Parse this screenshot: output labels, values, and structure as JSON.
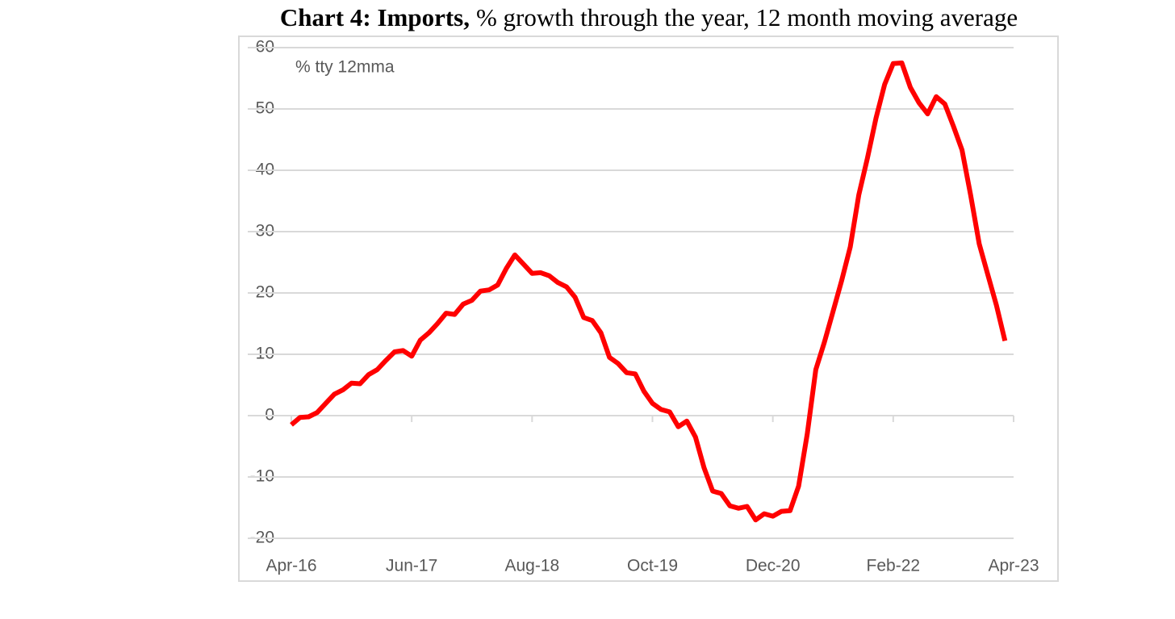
{
  "chart_data": {
    "type": "line",
    "title": [
      "Chart 4: Imports,",
      "% growth through the year, 12 month moving average"
    ],
    "annotation": "% tty 12mma",
    "categories": [
      "Apr-16",
      null,
      null,
      null,
      null,
      null,
      null,
      null,
      null,
      null,
      null,
      null,
      null,
      null,
      "Jun-17",
      null,
      null,
      null,
      null,
      null,
      null,
      null,
      null,
      null,
      null,
      null,
      null,
      null,
      "Aug-18",
      null,
      null,
      null,
      null,
      null,
      null,
      null,
      null,
      null,
      null,
      null,
      null,
      null,
      "Oct-19",
      null,
      null,
      null,
      null,
      null,
      null,
      null,
      null,
      null,
      null,
      null,
      null,
      null,
      "Dec-20",
      null,
      null,
      null,
      null,
      null,
      null,
      null,
      null,
      null,
      null,
      null,
      null,
      null,
      "Feb-22",
      null,
      null,
      null,
      null,
      null,
      null,
      null,
      null,
      null,
      null,
      null,
      null,
      null,
      "Apr-23"
    ],
    "series": [
      {
        "name": "Imports",
        "color": "#ff0000",
        "values": [
          -1.5,
          -0.3,
          -0.2,
          0.5,
          2,
          3.5,
          4.2,
          5.3,
          5.2,
          6.7,
          7.5,
          9,
          10.4,
          10.6,
          9.7,
          12.3,
          13.5,
          15,
          16.7,
          16.5,
          18.2,
          18.8,
          20.3,
          20.5,
          21.3,
          24,
          26.2,
          24.7,
          23.2,
          23.3,
          22.8,
          21.7,
          21,
          19.3,
          16,
          15.5,
          13.5,
          9.5,
          8.5,
          7,
          6.8,
          4,
          2,
          1,
          0.6,
          -1.8,
          -0.9,
          -3.5,
          -8.5,
          -12.3,
          -12.7,
          -14.7,
          -15.1,
          -14.8,
          -17,
          -16,
          -16.4,
          -15.6,
          -15.5,
          -11.5,
          -3,
          7.5,
          12,
          17,
          22,
          27.5,
          36,
          42,
          48.5,
          54,
          57.4,
          57.5,
          53.5,
          51,
          49.2,
          52,
          50.8,
          47.2,
          43.3,
          36,
          28,
          23,
          18,
          12.2,
          null
        ]
      }
    ],
    "ylim": [
      -20,
      60
    ],
    "yticks": [
      -20,
      -10,
      0,
      10,
      20,
      30,
      40,
      50,
      60
    ],
    "grid": true
  }
}
